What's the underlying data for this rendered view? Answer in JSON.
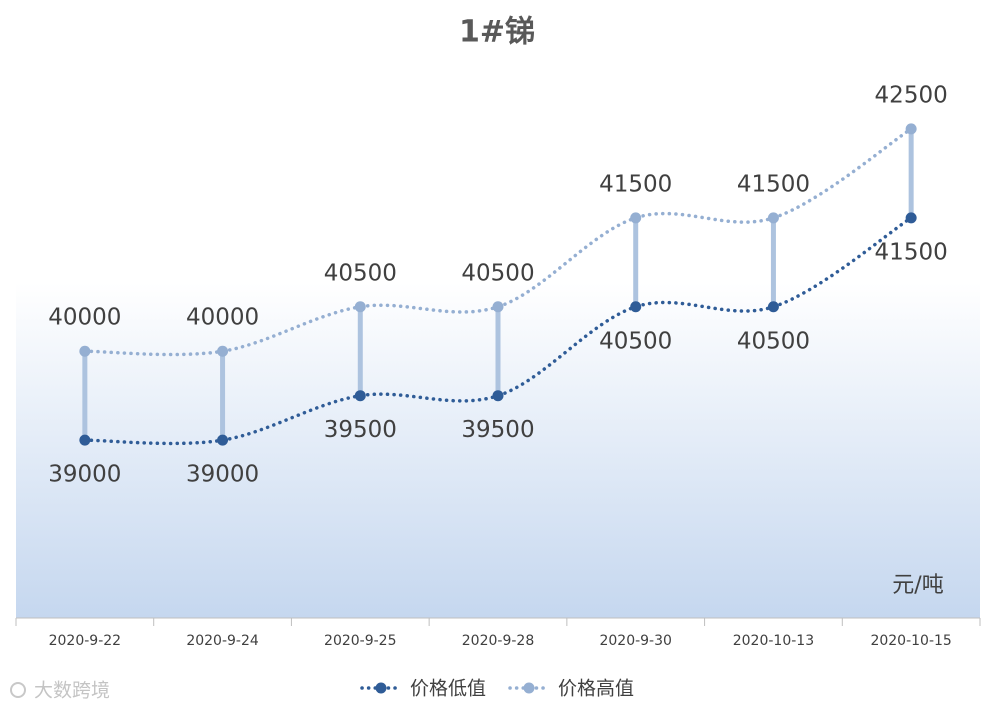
{
  "chart_data": {
    "type": "line",
    "title": "1#锑",
    "unit_label": "元/吨",
    "watermark": "大数跨境",
    "categories": [
      "2020-9-22",
      "2020-9-24",
      "2020-9-25",
      "2020-9-28",
      "2020-9-30",
      "2020-10-13",
      "2020-10-15"
    ],
    "series": [
      {
        "name": "价格低值",
        "color": "#2f5c97",
        "values": [
          39000,
          39000,
          39500,
          39500,
          40500,
          40500,
          41500
        ]
      },
      {
        "name": "价格高值",
        "color": "#95afd2",
        "values": [
          40000,
          40000,
          40500,
          40500,
          41500,
          41500,
          42500
        ]
      }
    ],
    "ylim": [
      37000,
      43500
    ],
    "high_low_color": "#adc3df"
  }
}
